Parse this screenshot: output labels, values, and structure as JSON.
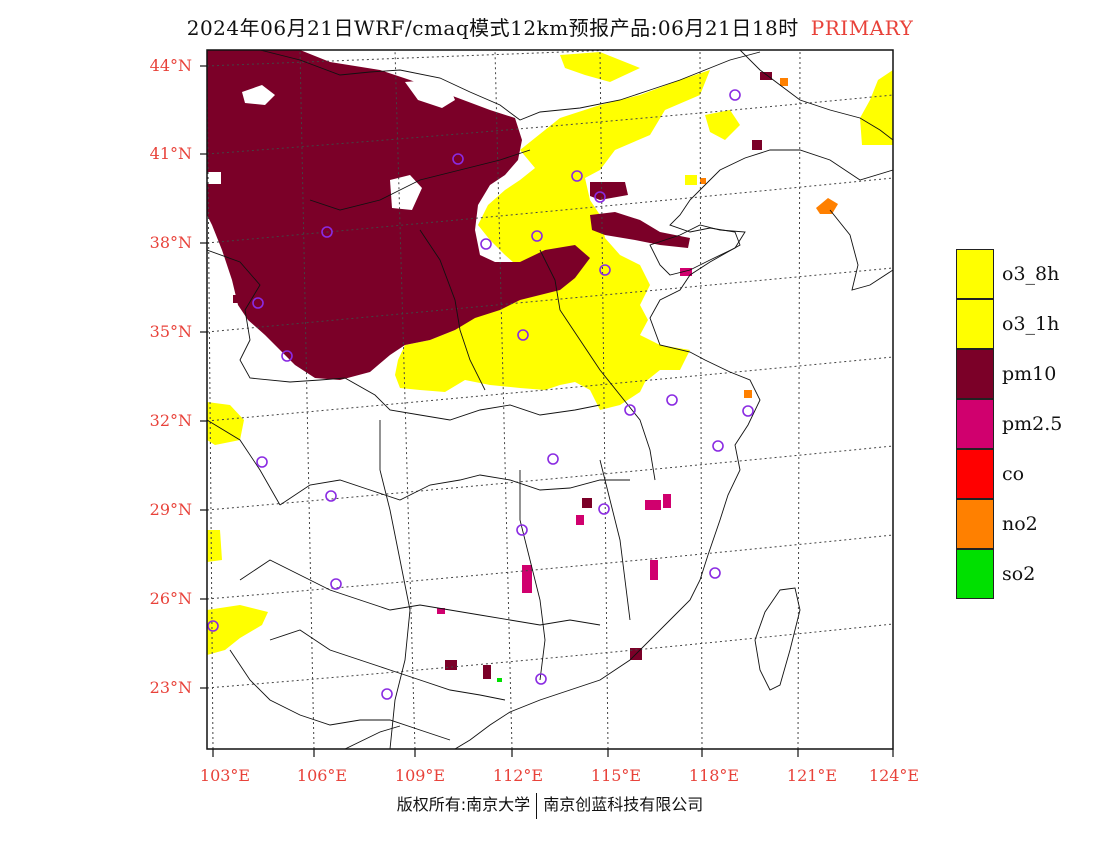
{
  "title": {
    "main": "2024年06月21日WRF/cmaq模式12km预报产品:06月21日18时",
    "tag": "PRIMARY"
  },
  "axes": {
    "lat_labels": [
      "44°N",
      "41°N",
      "38°N",
      "35°N",
      "32°N",
      "29°N",
      "26°N",
      "23°N"
    ],
    "lon_labels": [
      "103°E",
      "106°E",
      "109°E",
      "112°E",
      "115°E",
      "118°E",
      "121°E",
      "124°E"
    ]
  },
  "legend": [
    {
      "label": "o3_8h",
      "color": "#ffff00"
    },
    {
      "label": "o3_1h",
      "color": "#ffff00"
    },
    {
      "label": "pm10",
      "color": "#7b0028"
    },
    {
      "label": "pm2.5",
      "color": "#d0006e"
    },
    {
      "label": "co",
      "color": "#ff0000"
    },
    {
      "label": "no2",
      "color": "#ff8000"
    },
    {
      "label": "so2",
      "color": "#00e000"
    }
  ],
  "copyright": {
    "left": "版权所有:南京大学",
    "right": "南京创蓝科技有限公司"
  },
  "colors": {
    "accent_red": "#e8423a",
    "pm10": "#7b0028",
    "o3": "#ffff00",
    "pm25": "#d0006e",
    "no2": "#ff8000",
    "so2": "#00e000",
    "station_ring": "#8a2be2"
  }
}
